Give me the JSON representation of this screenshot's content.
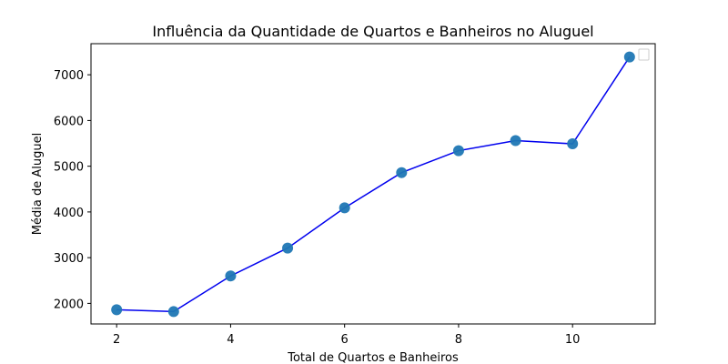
{
  "chart_data": {
    "type": "line",
    "title": "Influência da Quantidade de Quartos e Banheiros no Aluguel",
    "xlabel": "Total de Quartos e Banheiros",
    "ylabel": "Média de Aluguel",
    "x": [
      2,
      3,
      4,
      5,
      6,
      7,
      8,
      9,
      10,
      11
    ],
    "series": [
      {
        "values": [
          1860,
          1820,
          2600,
          3210,
          4090,
          4860,
          5340,
          5560,
          5490,
          7390
        ],
        "line_color": "#0000ee",
        "marker_color": "#1f77b4"
      }
    ],
    "xlim": [
      1.55,
      11.45
    ],
    "ylim": [
      1550,
      7680
    ],
    "xticks": [
      2,
      4,
      6,
      8,
      10
    ],
    "yticks": [
      2000,
      3000,
      4000,
      5000,
      6000,
      7000
    ],
    "xtick_labels": [
      "2",
      "4",
      "6",
      "8",
      "10"
    ],
    "ytick_labels": [
      "2000",
      "3000",
      "4000",
      "5000",
      "6000",
      "7000"
    ],
    "grid": false,
    "legend": {
      "placement": "top-right",
      "entries": []
    }
  }
}
